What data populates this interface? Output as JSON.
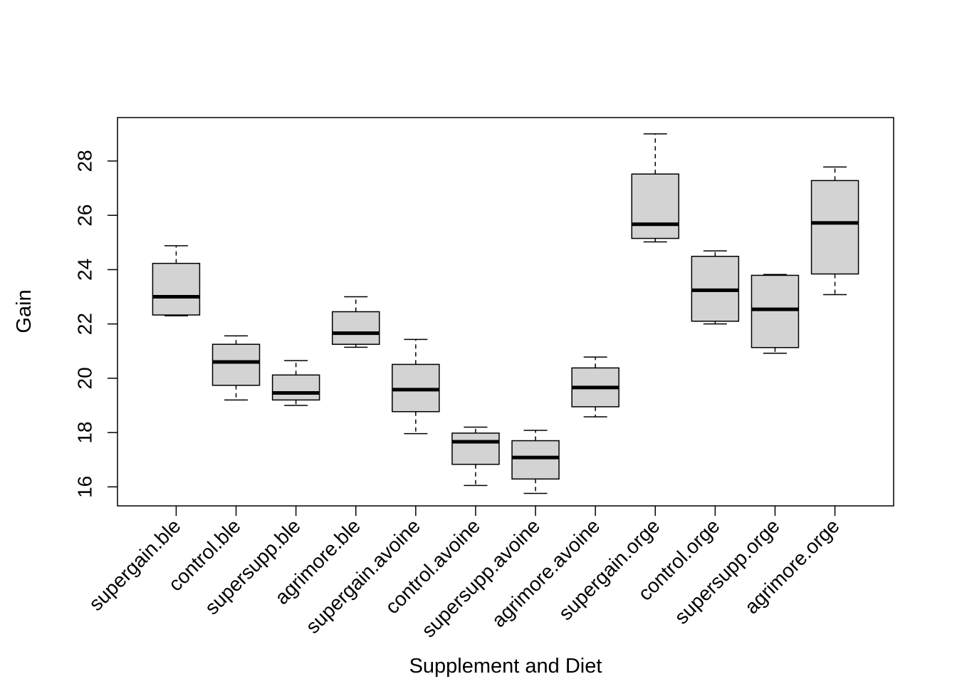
{
  "chart_data": {
    "type": "boxplot",
    "title": "",
    "xlabel": "Supplement and Diet",
    "ylabel": "Gain",
    "ylim": [
      15.3,
      29.6
    ],
    "yticks": [
      16,
      18,
      20,
      22,
      24,
      26,
      28
    ],
    "grid": false,
    "box_fill": "#d3d3d3",
    "categories": [
      "supergain.ble",
      "control.ble",
      "supersupp.ble",
      "agrimore.ble",
      "supergain.avoine",
      "control.avoine",
      "supersupp.avoine",
      "agrimore.avoine",
      "supergain.orge",
      "control.orge",
      "supersupp.orge",
      "agrimore.orge"
    ],
    "boxes": [
      {
        "min": 22.3,
        "q1": 22.33,
        "median": 23.0,
        "q3": 24.23,
        "max": 24.88
      },
      {
        "min": 19.2,
        "q1": 19.74,
        "median": 20.6,
        "q3": 21.25,
        "max": 21.56
      },
      {
        "min": 19.0,
        "q1": 19.2,
        "median": 19.46,
        "q3": 20.12,
        "max": 20.65
      },
      {
        "min": 21.14,
        "q1": 21.25,
        "median": 21.66,
        "q3": 22.45,
        "max": 23.0
      },
      {
        "min": 17.96,
        "q1": 18.77,
        "median": 19.58,
        "q3": 20.51,
        "max": 21.43
      },
      {
        "min": 16.05,
        "q1": 16.83,
        "median": 17.66,
        "q3": 17.98,
        "max": 18.2
      },
      {
        "min": 15.76,
        "q1": 16.29,
        "median": 17.08,
        "q3": 17.7,
        "max": 18.08
      },
      {
        "min": 18.58,
        "q1": 18.95,
        "median": 19.66,
        "q3": 20.38,
        "max": 20.78
      },
      {
        "min": 25.02,
        "q1": 25.15,
        "median": 25.67,
        "q3": 27.52,
        "max": 29.0
      },
      {
        "min": 22.0,
        "q1": 22.1,
        "median": 23.24,
        "q3": 24.49,
        "max": 24.69
      },
      {
        "min": 20.92,
        "q1": 21.13,
        "median": 22.54,
        "q3": 23.79,
        "max": 23.82
      },
      {
        "min": 23.08,
        "q1": 23.84,
        "median": 25.72,
        "q3": 27.28,
        "max": 27.78
      }
    ]
  }
}
